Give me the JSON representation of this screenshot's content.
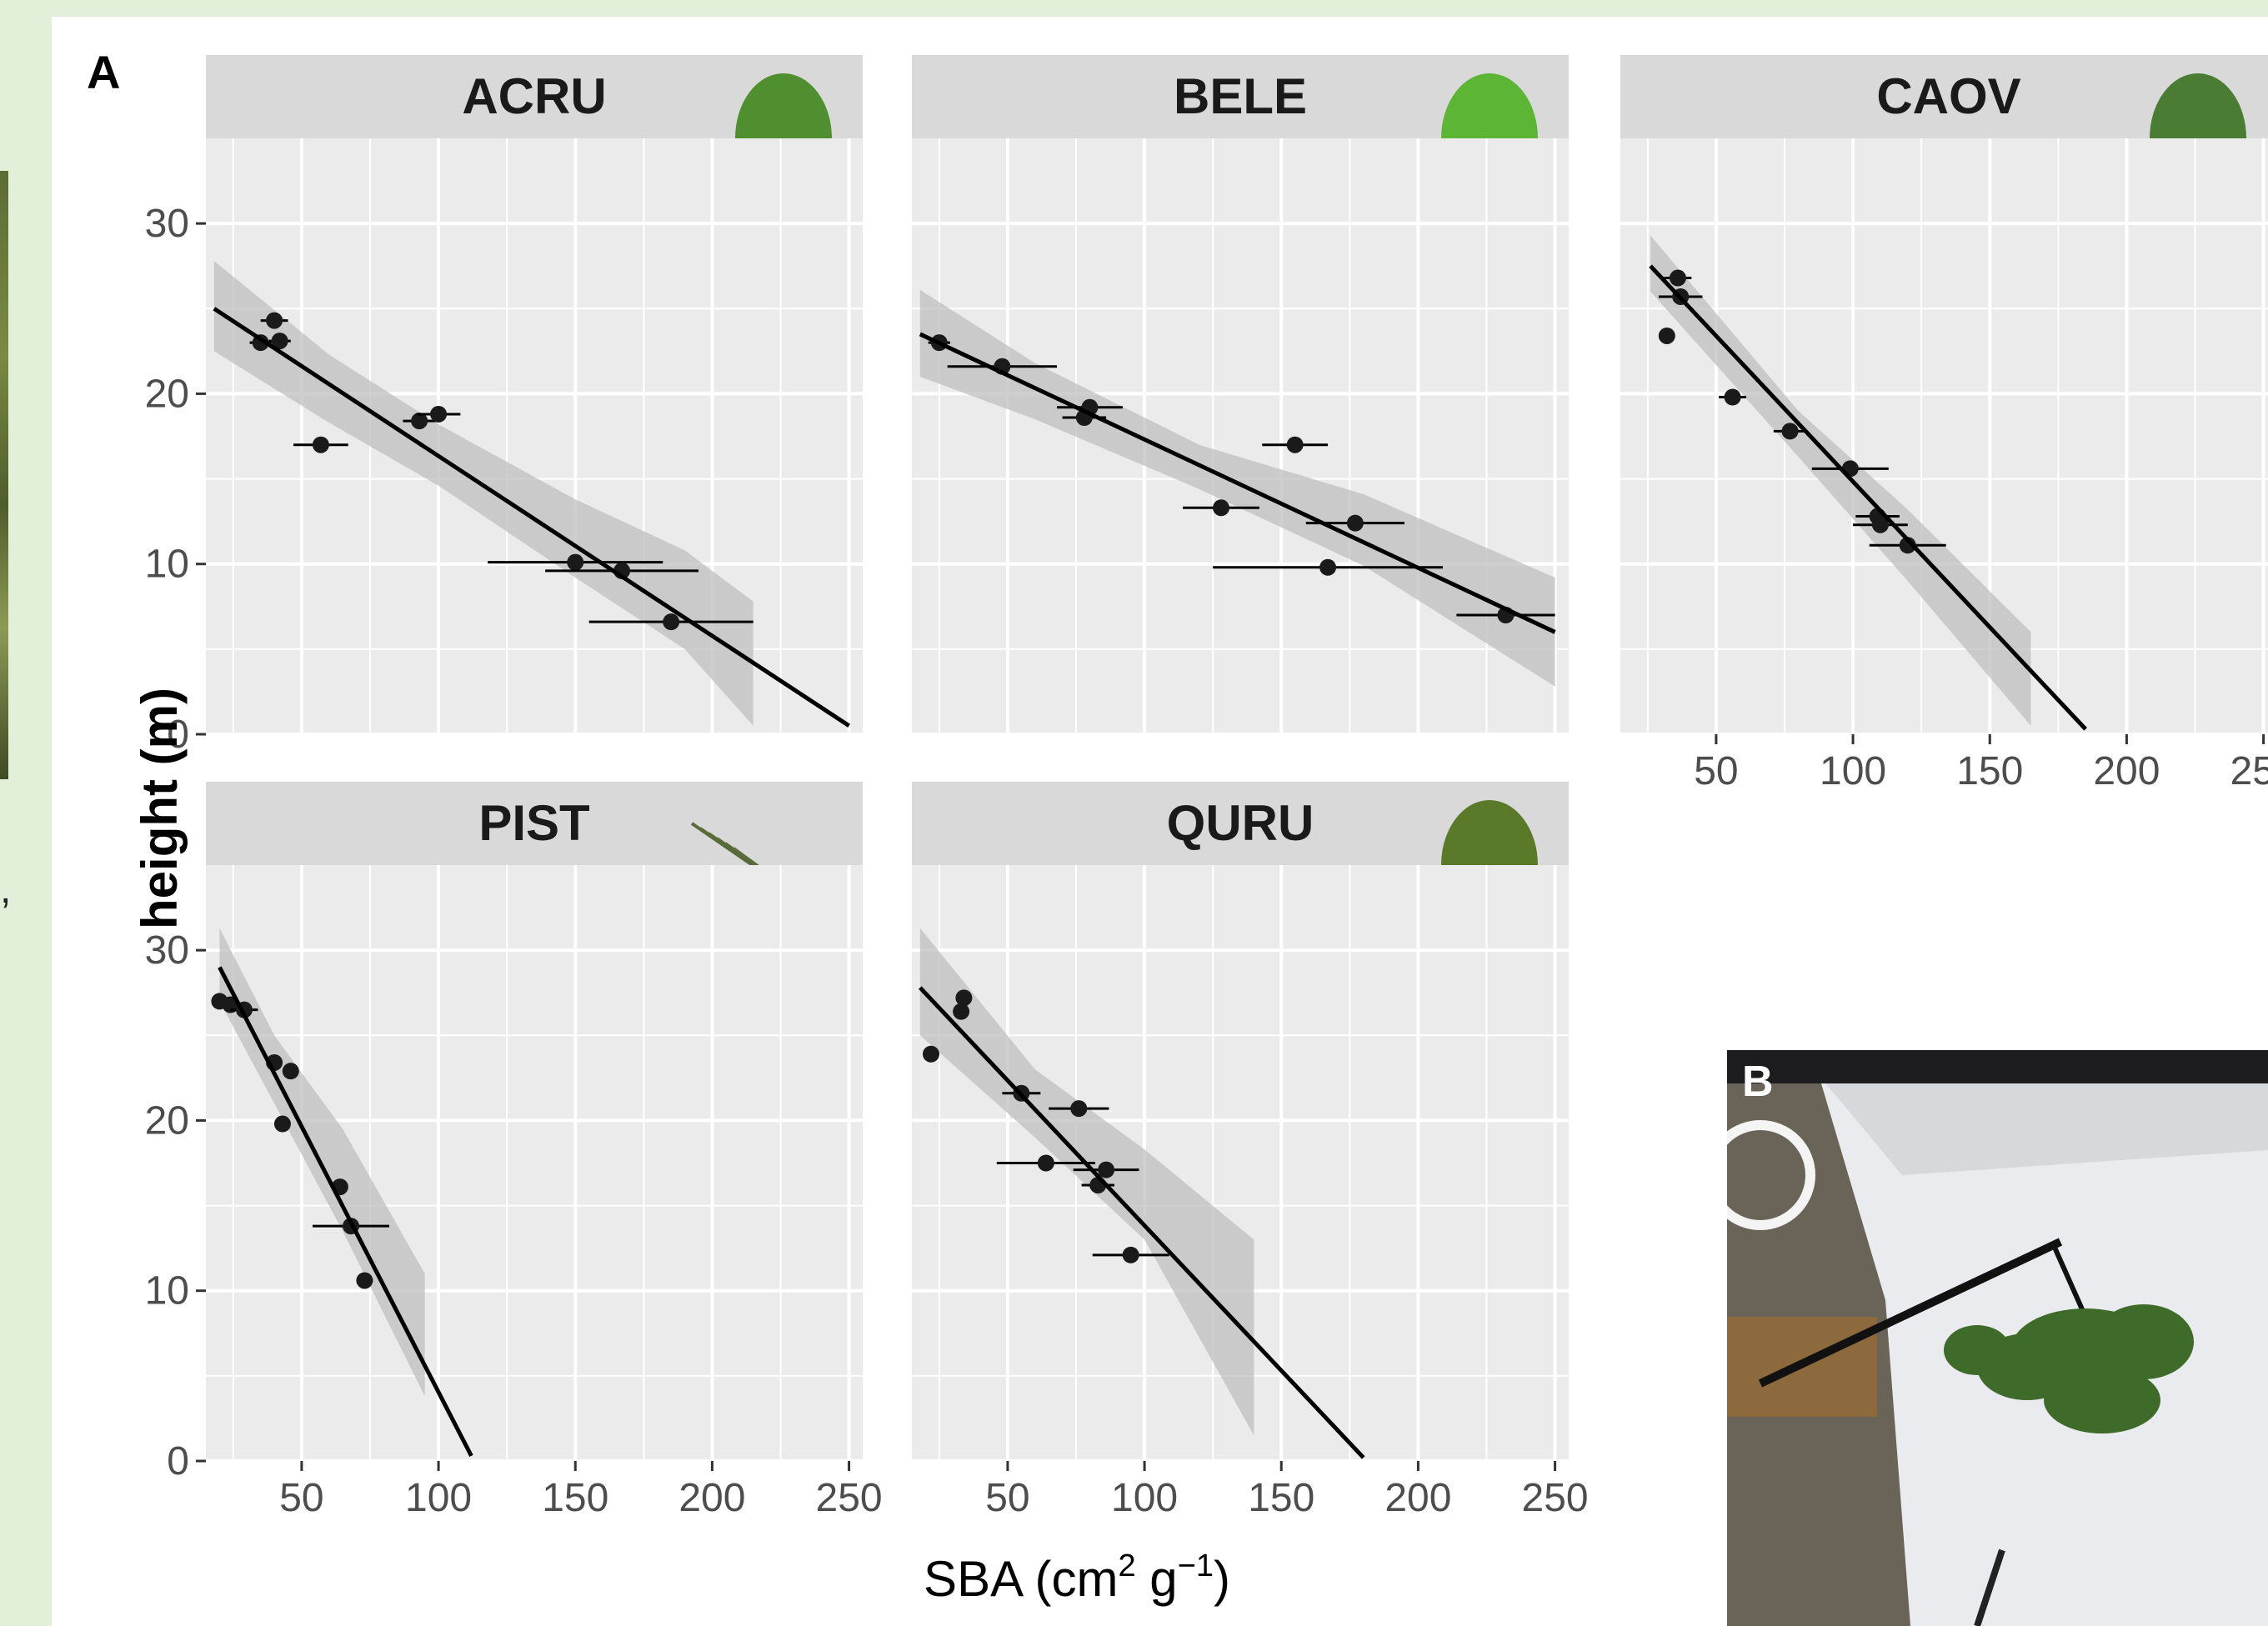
{
  "figure": {
    "panel_a_label": "A",
    "panel_b_label": "B",
    "trailing_comma": ","
  },
  "chart_data": {
    "type": "scatter",
    "xlabel": "SBA (cm2 g-1)",
    "xlabel_parts": {
      "base": "SBA (cm",
      "sup1": "2",
      "mid": " g",
      "sup2": "−1",
      "end": ")"
    },
    "ylabel": "height (m)",
    "xlim": [
      15,
      255
    ],
    "ylim": [
      0,
      35
    ],
    "x_ticks": [
      50,
      100,
      150,
      200,
      250
    ],
    "y_ticks": [
      0,
      10,
      20,
      30
    ],
    "grid": true,
    "colors": {
      "panel_bg": "#ebebeb",
      "strip_bg": "#d9d9d9",
      "grid": "#ffffff",
      "ribbon": "#bfbfbf",
      "points": "#1a1a1a",
      "line": "#000000"
    },
    "facets": [
      {
        "name": "ACRU",
        "leaf_icon": "maple-leaf-icon",
        "fit": {
          "x": [
            18,
            250
          ],
          "y": [
            25.0,
            0.5
          ]
        },
        "ribbon": {
          "x": [
            18,
            60,
            100,
            150,
            190,
            215
          ],
          "lower": [
            22.5,
            18.3,
            14.6,
            9.2,
            5.0,
            0.5
          ],
          "upper": [
            27.8,
            22.3,
            18.2,
            13.8,
            10.8,
            7.8
          ]
        },
        "points": [
          {
            "x": 40,
            "y": 24.3,
            "xerr": 5
          },
          {
            "x": 35,
            "y": 23.0,
            "xerr": 4
          },
          {
            "x": 42,
            "y": 23.1,
            "xerr": 4
          },
          {
            "x": 57,
            "y": 17.0,
            "xerr": 10
          },
          {
            "x": 93,
            "y": 18.4,
            "xerr": 6
          },
          {
            "x": 100,
            "y": 18.8,
            "xerr": 8
          },
          {
            "x": 150,
            "y": 10.1,
            "xerr": 32
          },
          {
            "x": 167,
            "y": 9.6,
            "xerr": 28
          },
          {
            "x": 185,
            "y": 6.6,
            "xerr": 30
          }
        ]
      },
      {
        "name": "BELE",
        "leaf_icon": "birch-leaf-icon",
        "fit": {
          "x": [
            18,
            250
          ],
          "y": [
            23.5,
            6.0
          ]
        },
        "ribbon": {
          "x": [
            18,
            60,
            120,
            180,
            250
          ],
          "lower": [
            21.0,
            18.5,
            14.4,
            9.9,
            2.8
          ],
          "upper": [
            26.1,
            21.8,
            17.0,
            14.1,
            9.2
          ]
        },
        "points": [
          {
            "x": 25,
            "y": 23.0,
            "xerr": 4
          },
          {
            "x": 48,
            "y": 21.6,
            "xerr": 20
          },
          {
            "x": 78,
            "y": 18.6,
            "xerr": 8
          },
          {
            "x": 80,
            "y": 19.2,
            "xerr": 12
          },
          {
            "x": 128,
            "y": 13.3,
            "xerr": 14
          },
          {
            "x": 155,
            "y": 17.0,
            "xerr": 12
          },
          {
            "x": 167,
            "y": 9.8,
            "xerr": 42
          },
          {
            "x": 177,
            "y": 12.4,
            "xerr": 18
          },
          {
            "x": 232,
            "y": 7.0,
            "xerr": 18
          }
        ]
      },
      {
        "name": "CAOV",
        "leaf_icon": "hickory-leaf-icon",
        "fit": {
          "x": [
            26,
            185
          ],
          "y": [
            27.5,
            0.3
          ]
        },
        "ribbon": {
          "x": [
            26,
            80,
            120,
            165
          ],
          "lower": [
            26.0,
            16.3,
            9.0,
            0.5
          ],
          "upper": [
            29.3,
            19.0,
            13.2,
            6.0
          ]
        },
        "points": [
          {
            "x": 36,
            "y": 26.8,
            "xerr": 5
          },
          {
            "x": 37,
            "y": 25.7,
            "xerr": 8
          },
          {
            "x": 32,
            "y": 23.4,
            "xerr": 2
          },
          {
            "x": 56,
            "y": 19.8,
            "xerr": 5
          },
          {
            "x": 77,
            "y": 17.8,
            "xerr": 6
          },
          {
            "x": 99,
            "y": 15.6,
            "xerr": 14
          },
          {
            "x": 109,
            "y": 12.8,
            "xerr": 8
          },
          {
            "x": 110,
            "y": 12.3,
            "xerr": 10
          },
          {
            "x": 120,
            "y": 11.1,
            "xerr": 14
          }
        ]
      },
      {
        "name": "PIST",
        "leaf_icon": "pine-needles-icon",
        "fit": {
          "x": [
            20,
            112
          ],
          "y": [
            29.0,
            0.3
          ]
        },
        "ribbon": {
          "x": [
            20,
            40,
            65,
            95
          ],
          "lower": [
            27.0,
            21.0,
            13.5,
            3.8
          ],
          "upper": [
            31.3,
            25.0,
            19.5,
            11.0
          ]
        },
        "points": [
          {
            "x": 20,
            "y": 27.0,
            "xerr": 2
          },
          {
            "x": 24,
            "y": 26.8,
            "xerr": 3
          },
          {
            "x": 29,
            "y": 26.5,
            "xerr": 5
          },
          {
            "x": 40,
            "y": 23.4,
            "xerr": 2
          },
          {
            "x": 46,
            "y": 22.9,
            "xerr": 2
          },
          {
            "x": 43,
            "y": 19.8,
            "xerr": 2
          },
          {
            "x": 64,
            "y": 16.1,
            "xerr": 2
          },
          {
            "x": 68,
            "y": 13.8,
            "xerr": 14
          },
          {
            "x": 73,
            "y": 10.6,
            "xerr": 3
          }
        ]
      },
      {
        "name": "QURU",
        "leaf_icon": "oak-leaf-icon",
        "fit": {
          "x": [
            18,
            180
          ],
          "y": [
            27.8,
            0.2
          ]
        },
        "ribbon": {
          "x": [
            18,
            60,
            100,
            140
          ],
          "lower": [
            25.0,
            19.0,
            13.0,
            1.5
          ],
          "upper": [
            31.3,
            23.0,
            18.3,
            13.0
          ]
        },
        "points": [
          {
            "x": 34,
            "y": 27.2,
            "xerr": 2
          },
          {
            "x": 33,
            "y": 26.4,
            "xerr": 2
          },
          {
            "x": 22,
            "y": 23.9,
            "xerr": 2
          },
          {
            "x": 55,
            "y": 21.6,
            "xerr": 7
          },
          {
            "x": 76,
            "y": 20.7,
            "xerr": 11
          },
          {
            "x": 64,
            "y": 17.5,
            "xerr": 18
          },
          {
            "x": 86,
            "y": 17.1,
            "xerr": 12
          },
          {
            "x": 83,
            "y": 16.2,
            "xerr": 6
          },
          {
            "x": 95,
            "y": 12.1,
            "xerr": 14
          }
        ]
      }
    ]
  }
}
